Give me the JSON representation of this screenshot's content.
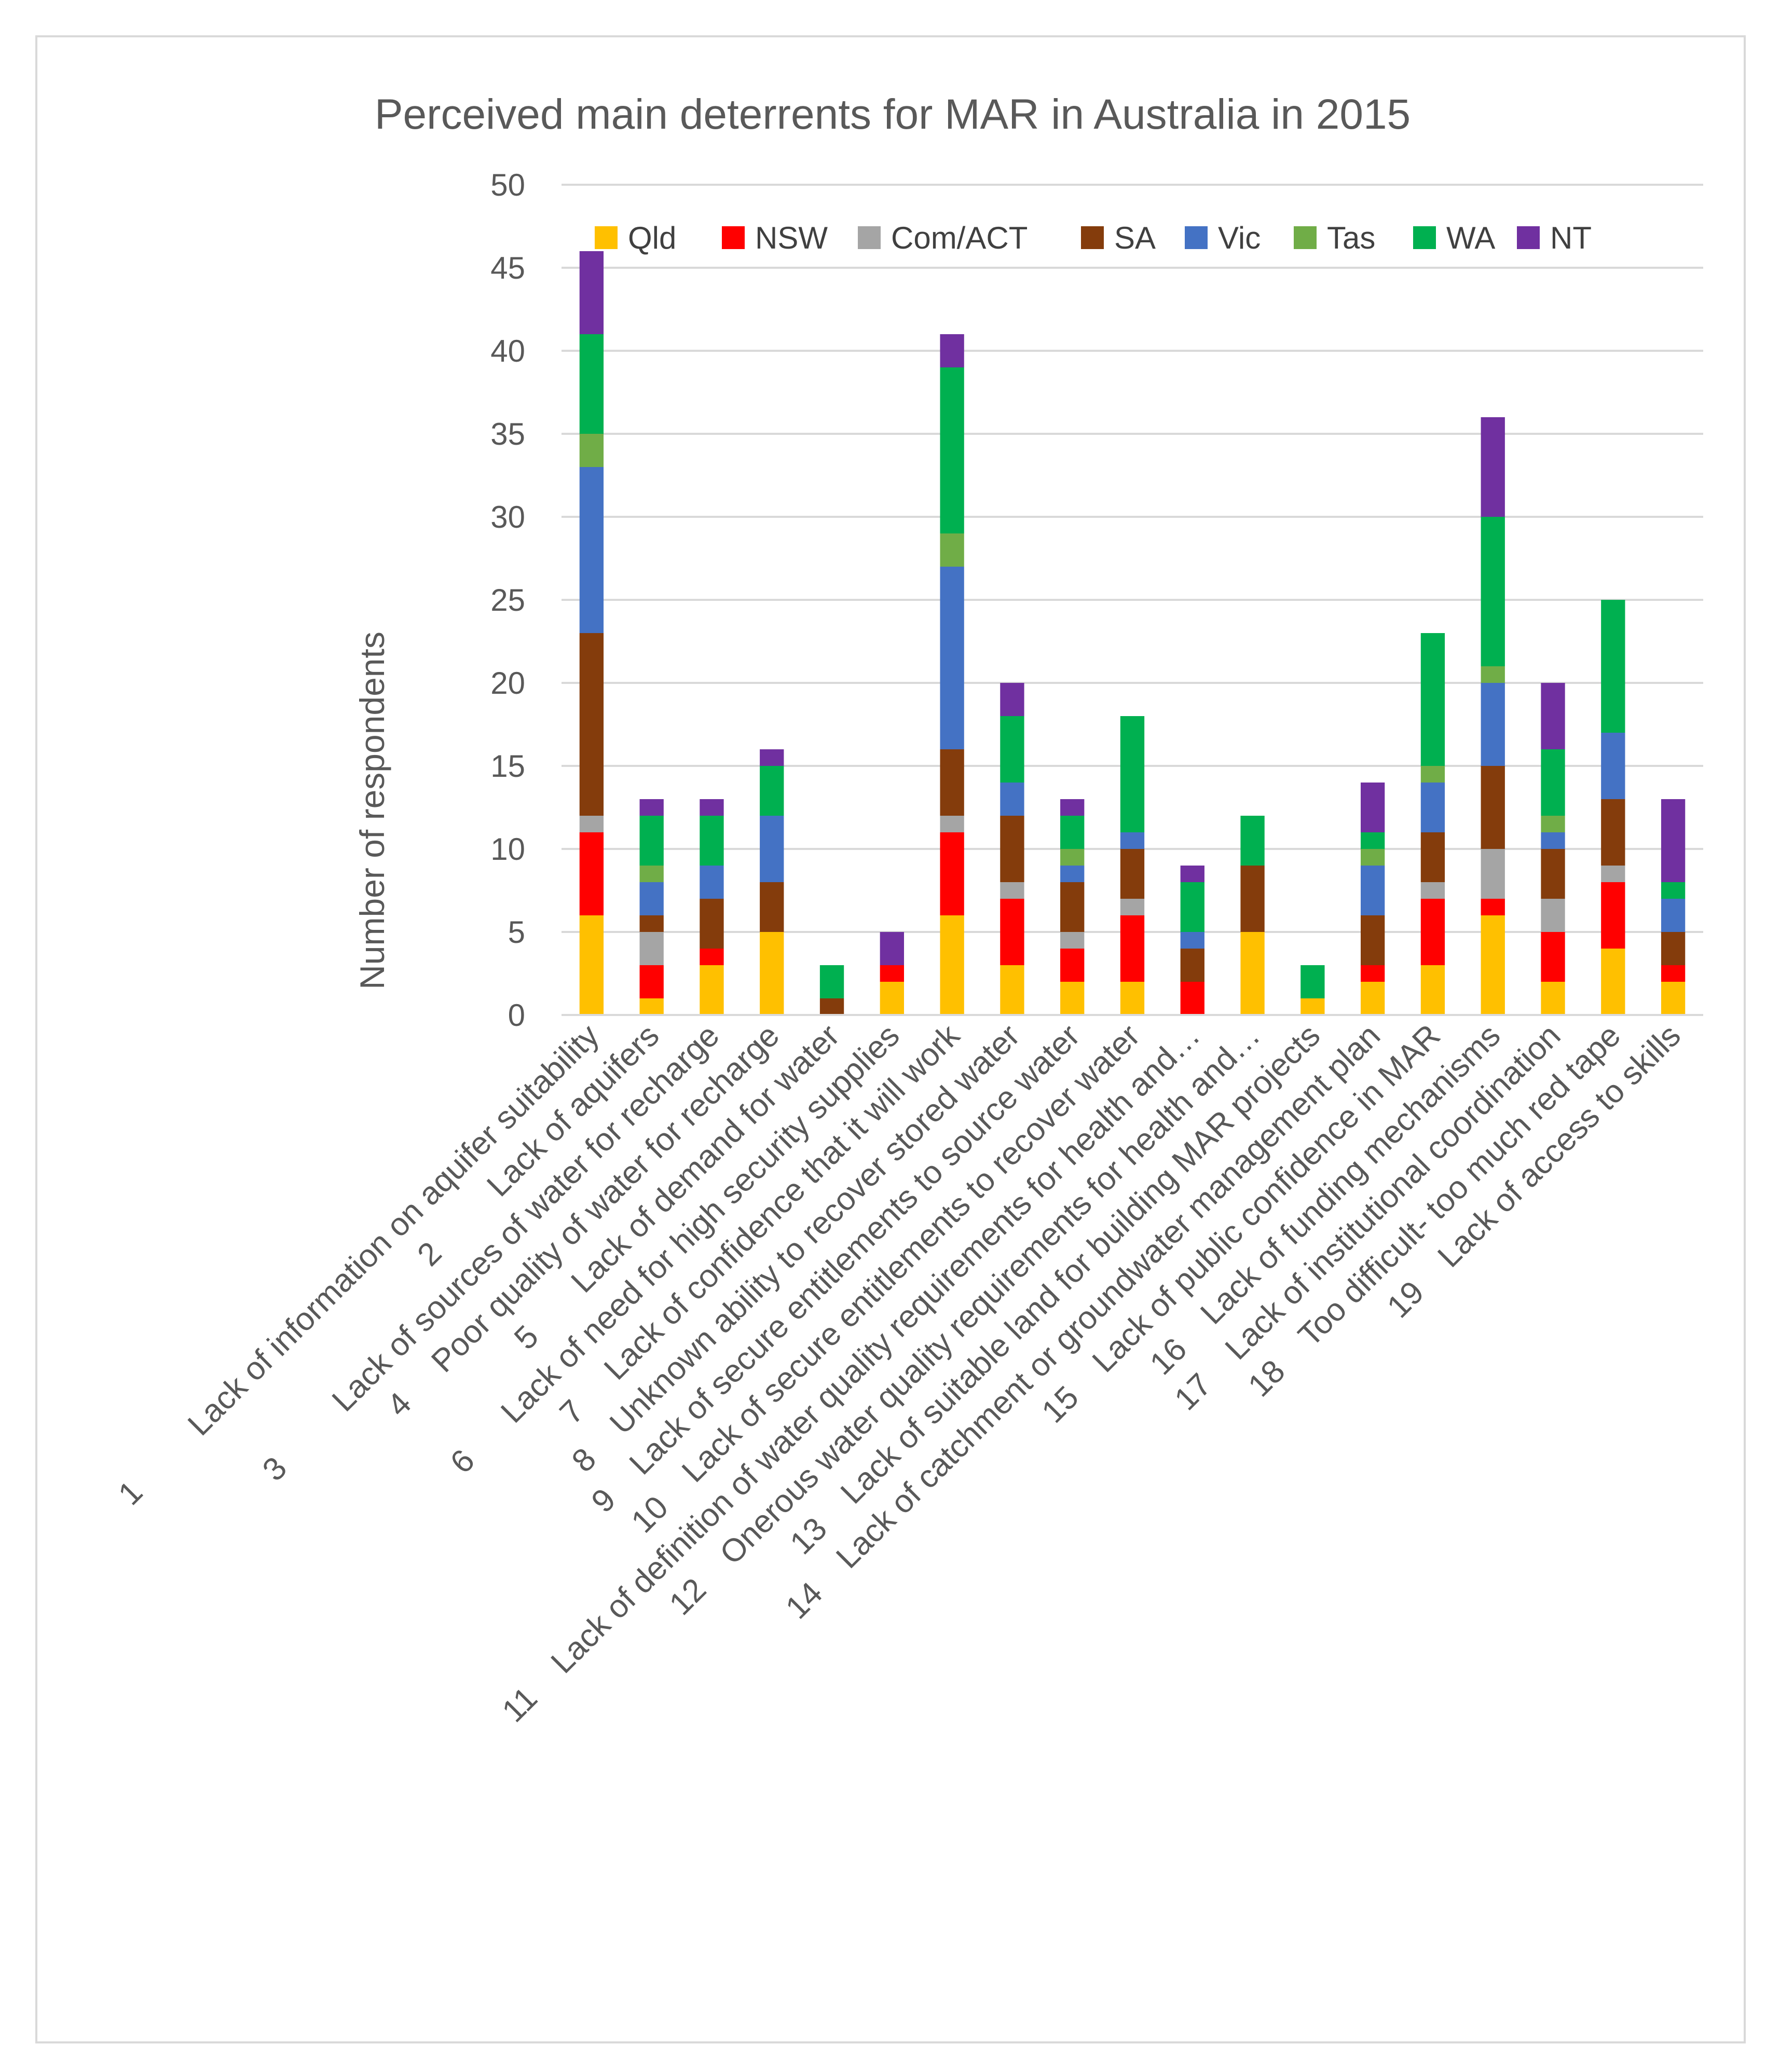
{
  "chart_data": {
    "type": "bar",
    "stacked": true,
    "title": "Perceived main deterrents for MAR in Australia in 2015",
    "xlabel": "",
    "ylabel": "Number of respondents",
    "ylim": [
      0,
      50
    ],
    "yticks": [
      0,
      5,
      10,
      15,
      20,
      25,
      30,
      35,
      40,
      45,
      50
    ],
    "grid": true,
    "legend_position": "top",
    "categories": [
      "1         Lack of information on aquifer suitability",
      "2         Lack of aquifers",
      "3         Lack of sources of water for recharge",
      "4     Poor quality of water for recharge",
      "5       Lack of demand for water",
      "6      Lack of need for high security supplies",
      "7     Lack of confidence that it will work",
      "8    Unknown ability to recover stored water",
      "9    Lack of secure entitlements to source water",
      "10    Lack of secure entitlements to recover water",
      "11    Lack of definition of water quality requirements for health and…",
      "12    Onerous water quality requirements for health and…",
      "13    Lack of suitable land for building MAR projects",
      "14    Lack of catchment or groundwater management plan",
      "15    Lack of public confidence in MAR",
      "16    Lack of funding mechanisms",
      "17    Lack of institutional coordination",
      "18    Too difficult- too much red tape",
      "19    Lack of access to skills"
    ],
    "series": [
      {
        "name": "Qld",
        "color": "#FFC000",
        "values": [
          6,
          1,
          3,
          5,
          0,
          2,
          6,
          3,
          2,
          2,
          0,
          5,
          1,
          2,
          3,
          6,
          2,
          4,
          2
        ]
      },
      {
        "name": "NSW",
        "color": "#FF0000",
        "values": [
          5,
          2,
          1,
          0,
          0,
          1,
          5,
          4,
          2,
          4,
          2,
          0,
          0,
          1,
          4,
          1,
          3,
          4,
          1
        ]
      },
      {
        "name": "Com/ACT",
        "color": "#A5A5A5",
        "values": [
          1,
          2,
          0,
          0,
          0,
          0,
          1,
          1,
          1,
          1,
          0,
          0,
          0,
          0,
          1,
          3,
          2,
          1,
          0
        ]
      },
      {
        "name": "SA",
        "color": "#843C0C",
        "values": [
          11,
          1,
          3,
          3,
          1,
          0,
          4,
          4,
          3,
          3,
          2,
          4,
          0,
          3,
          3,
          5,
          3,
          4,
          2
        ]
      },
      {
        "name": "Vic",
        "color": "#4472C4",
        "values": [
          10,
          2,
          2,
          4,
          0,
          0,
          11,
          2,
          1,
          1,
          1,
          0,
          0,
          3,
          3,
          5,
          1,
          4,
          2
        ]
      },
      {
        "name": "Tas",
        "color": "#70AD47",
        "values": [
          2,
          1,
          0,
          0,
          0,
          0,
          2,
          0,
          1,
          0,
          0,
          0,
          0,
          1,
          1,
          1,
          1,
          0,
          0
        ]
      },
      {
        "name": "WA",
        "color": "#00B050",
        "values": [
          6,
          3,
          3,
          3,
          2,
          0,
          10,
          4,
          2,
          7,
          3,
          3,
          2,
          1,
          8,
          9,
          4,
          8,
          1
        ]
      },
      {
        "name": "NT",
        "color": "#7030A0",
        "values": [
          5,
          1,
          1,
          1,
          0,
          2,
          2,
          2,
          1,
          0,
          1,
          0,
          0,
          3,
          0,
          6,
          4,
          0,
          5
        ]
      }
    ]
  }
}
